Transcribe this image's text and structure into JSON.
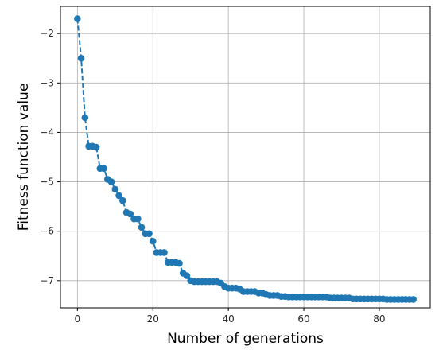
{
  "chart_data": {
    "type": "line",
    "title": "",
    "xlabel": "Number of generations",
    "ylabel": "Fitness function value",
    "xlim": [
      -4.5,
      93.5
    ],
    "ylim": [
      -7.55,
      -1.45
    ],
    "xticks": [
      0,
      20,
      40,
      60,
      80
    ],
    "yticks": [
      -7,
      -6,
      -5,
      -4,
      -3,
      -2
    ],
    "ytick_labels": [
      "−7",
      "−6",
      "−5",
      "−4",
      "−3",
      "−2"
    ],
    "grid": true,
    "line_style": "dashed",
    "marker": "circle",
    "color": "#1f77b4",
    "series": [
      {
        "name": "",
        "x": [
          0,
          1,
          2,
          3,
          4,
          5,
          6,
          7,
          8,
          9,
          10,
          11,
          12,
          13,
          14,
          15,
          16,
          17,
          18,
          19,
          20,
          21,
          22,
          23,
          24,
          25,
          26,
          27,
          28,
          29,
          30,
          31,
          32,
          33,
          34,
          35,
          36,
          37,
          38,
          39,
          40,
          41,
          42,
          43,
          44,
          45,
          46,
          47,
          48,
          49,
          50,
          51,
          52,
          53,
          54,
          55,
          56,
          57,
          58,
          59,
          60,
          61,
          62,
          63,
          64,
          65,
          66,
          67,
          68,
          69,
          70,
          71,
          72,
          73,
          74,
          75,
          76,
          77,
          78,
          79,
          80,
          81,
          82,
          83,
          84,
          85,
          86,
          87,
          88,
          89
        ],
        "y": [
          -1.7,
          -2.5,
          -3.7,
          -4.28,
          -4.28,
          -4.3,
          -4.73,
          -4.73,
          -4.95,
          -5.0,
          -5.15,
          -5.28,
          -5.38,
          -5.62,
          -5.65,
          -5.75,
          -5.75,
          -5.92,
          -6.05,
          -6.05,
          -6.2,
          -6.43,
          -6.43,
          -6.43,
          -6.63,
          -6.63,
          -6.63,
          -6.65,
          -6.85,
          -6.9,
          -7.0,
          -7.02,
          -7.02,
          -7.02,
          -7.02,
          -7.02,
          -7.02,
          -7.02,
          -7.05,
          -7.12,
          -7.15,
          -7.15,
          -7.15,
          -7.17,
          -7.22,
          -7.22,
          -7.22,
          -7.22,
          -7.25,
          -7.25,
          -7.28,
          -7.3,
          -7.3,
          -7.3,
          -7.32,
          -7.32,
          -7.33,
          -7.33,
          -7.33,
          -7.33,
          -7.33,
          -7.33,
          -7.33,
          -7.33,
          -7.33,
          -7.33,
          -7.33,
          -7.35,
          -7.35,
          -7.35,
          -7.35,
          -7.35,
          -7.35,
          -7.37,
          -7.37,
          -7.37,
          -7.37,
          -7.37,
          -7.37,
          -7.37,
          -7.37,
          -7.37,
          -7.38,
          -7.38,
          -7.38,
          -7.38,
          -7.38,
          -7.38,
          -7.38,
          -7.38
        ]
      }
    ]
  }
}
